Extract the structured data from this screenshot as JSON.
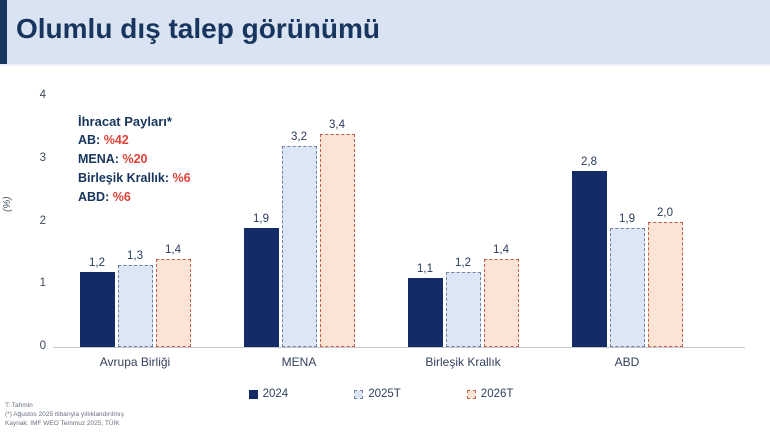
{
  "header": {
    "title": "Olumlu dış talep görünümü"
  },
  "annotation": {
    "title": "İhracat Payları*",
    "items": [
      {
        "label": "AB:",
        "value": "%42"
      },
      {
        "label": "MENA:",
        "value": "%20"
      },
      {
        "label": "Birleşik Krallık:",
        "value": "%6"
      },
      {
        "label": "ABD:",
        "value": "%6"
      }
    ]
  },
  "chart_data": {
    "type": "bar",
    "title": "Olumlu dış talep görünümü",
    "categories": [
      "Avrupa Birliği",
      "MENA",
      "Birleşik Krallık",
      "ABD"
    ],
    "series": [
      {
        "name": "2024",
        "values": [
          1.2,
          1.9,
          1.1,
          2.8
        ],
        "style": "solid",
        "fill": "#132b66",
        "border": "#132b66"
      },
      {
        "name": "2025T",
        "values": [
          1.3,
          3.2,
          1.2,
          1.9
        ],
        "style": "dashed",
        "fill": "#dce6f4",
        "border": "#7081a3"
      },
      {
        "name": "2026T",
        "values": [
          1.4,
          3.4,
          1.4,
          2.0
        ],
        "style": "dashed",
        "fill": "#fbe4d5",
        "border": "#c4604c"
      }
    ],
    "xlabel": "",
    "ylabel": "(%)",
    "ylim": [
      0,
      4
    ],
    "yticks": [
      0,
      1,
      2,
      3,
      4
    ],
    "grid": false,
    "legend_position": "bottom",
    "decimal_separator": ","
  },
  "colors": {
    "header_bg": "#dae3f2",
    "accent_navy": "#17355e",
    "annotation_red": "#e04338"
  },
  "footnotes": [
    "T: Tahmin",
    "(*) Ağustos 2025 itibarıyla yıllıklandırılmış",
    "Kaynak: IMF WEO Temmuz 2025, TÜİK"
  ]
}
